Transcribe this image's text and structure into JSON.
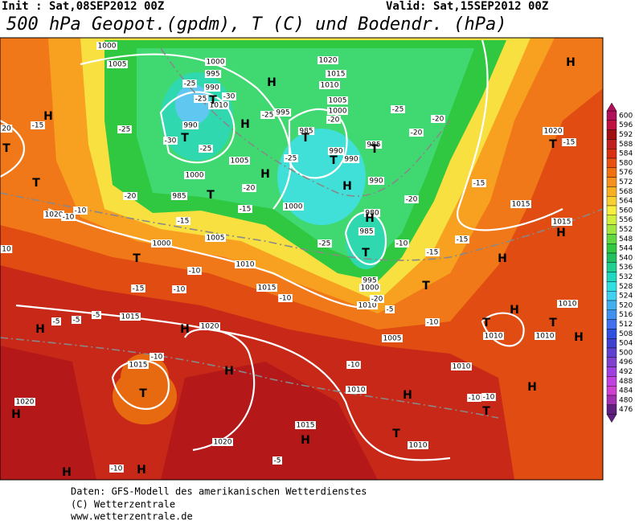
{
  "header": {
    "init": "Init : Sat,08SEP2012 00Z",
    "valid": "Valid: Sat,15SEP2012 00Z",
    "title": "500 hPa Geopot.(gpdm), T (C) und Bodendr. (hPa)"
  },
  "map": {
    "pressure_centers": [
      "H",
      "H",
      "T",
      "T",
      "H",
      "T",
      "H",
      "T",
      "T",
      "T",
      "T",
      "H",
      "T",
      "H",
      "H",
      "T",
      "H",
      "T",
      "T",
      "H",
      "T",
      "T",
      "H",
      "H",
      "H",
      "T",
      "H",
      "H",
      "H",
      "H",
      "T",
      "T",
      "H",
      "H",
      "H",
      "T",
      "H"
    ],
    "isobar_labels": [
      1000,
      1005,
      1000,
      995,
      990,
      1010,
      990,
      1005,
      1000,
      985,
      1020,
      1000,
      1005,
      1010,
      1015,
      1020,
      1015,
      1020,
      1015,
      1020,
      1015,
      1010,
      1005,
      1010,
      1010,
      1010,
      1010,
      1015,
      1015,
      1020,
      1020,
      1015,
      1010,
      1005,
      1000,
      985,
      990,
      990,
      985,
      990,
      980,
      985,
      995,
      1000,
      1010,
      1000,
      995,
      1010
    ],
    "temperature_labels": [
      -15,
      -25,
      -25,
      -30,
      -25,
      -30,
      -25,
      -25,
      -25,
      -20,
      -25,
      -20,
      -20,
      -20,
      -20,
      -15,
      -15,
      -20,
      -10,
      -10,
      -25,
      -10,
      -15,
      -15,
      -15,
      -10,
      -10,
      -15,
      -10,
      -20,
      -10,
      -5,
      -5,
      -5,
      -10,
      -10,
      -5,
      -10,
      -10,
      -10,
      -5,
      -15,
      20,
      10
    ]
  },
  "colorbar": {
    "levels": [
      600,
      596,
      592,
      588,
      584,
      580,
      576,
      572,
      568,
      564,
      560,
      556,
      552,
      548,
      544,
      540,
      536,
      532,
      528,
      524,
      520,
      516,
      512,
      508,
      504,
      500,
      496,
      492,
      488,
      484,
      480,
      476
    ],
    "colors": [
      "#b0105a",
      "#c01040",
      "#a01010",
      "#c02020",
      "#d83010",
      "#e85010",
      "#f07010",
      "#f89020",
      "#f8b020",
      "#f8d030",
      "#f8f040",
      "#d0f040",
      "#a0e840",
      "#60d840",
      "#30c840",
      "#20c060",
      "#20d090",
      "#20d8c0",
      "#30e0e0",
      "#40d0f0",
      "#40b0f0",
      "#4090f0",
      "#4070f0",
      "#3050e0",
      "#4040d0",
      "#6040d0",
      "#8040d0",
      "#a040e0",
      "#c040e0",
      "#d040d0",
      "#a030b0",
      "#602080"
    ]
  },
  "footer": {
    "lines": [
      "Daten: GFS-Modell des amerikanischen Wetterdienstes",
      "(C) Wetterzentrale",
      "www.wetterzentrale.de"
    ]
  }
}
